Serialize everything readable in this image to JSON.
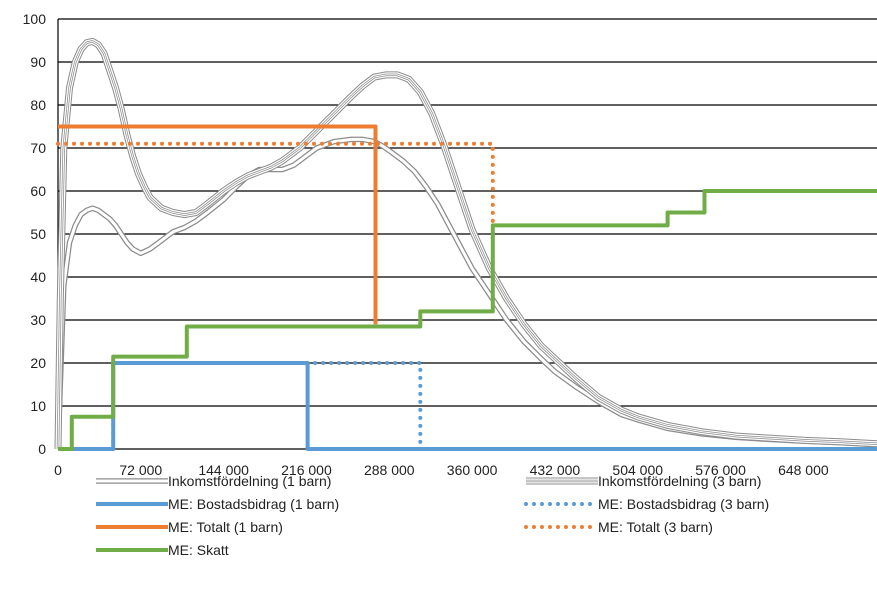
{
  "chart_data": {
    "type": "line",
    "xlim": [
      0,
      712000
    ],
    "ylim": [
      0,
      100
    ],
    "x_ticks": [
      0,
      72000,
      144000,
      216000,
      288000,
      360000,
      432000,
      504000,
      576000,
      648000
    ],
    "x_tick_labels": [
      "0",
      "72 000",
      "144 000",
      "216 000",
      "288 000",
      "360 000",
      "432 000",
      "504 000",
      "576 000",
      "648 000"
    ],
    "y_ticks": [
      0,
      10,
      20,
      30,
      40,
      50,
      60,
      70,
      80,
      90,
      100
    ],
    "y_tick_labels": [
      "0",
      "10",
      "20",
      "30",
      "40",
      "50",
      "60",
      "70",
      "80",
      "90",
      "100"
    ],
    "grid": "horizontal",
    "legend_position": "bottom",
    "series": [
      {
        "name": "Inkomstfördelning (1 barn)",
        "style": "double",
        "color": "#8c8c8c",
        "x": [
          0,
          2000,
          5000,
          10000,
          15000,
          20000,
          25000,
          30000,
          35000,
          40000,
          45000,
          50000,
          55000,
          60000,
          65000,
          72000,
          80000,
          90000,
          100000,
          110000,
          120000,
          130000,
          144000,
          155000,
          165000,
          175000,
          185000,
          195000,
          205000,
          215000,
          225000,
          240000,
          255000,
          265000,
          275000,
          282000,
          290000,
          300000,
          310000,
          320000,
          330000,
          340000,
          350000,
          360000,
          375000,
          390000,
          405000,
          420000,
          432000,
          450000,
          470000,
          490000,
          504000,
          530000,
          560000,
          590000,
          620000,
          650000,
          680000,
          712000
        ],
        "y": [
          0,
          15,
          38,
          48,
          52,
          54.5,
          55.5,
          56,
          55.5,
          54.5,
          53.5,
          52,
          50,
          48,
          46.5,
          45.5,
          46.5,
          48.5,
          50.5,
          51.5,
          53,
          55,
          58,
          61,
          63.5,
          65,
          65,
          65,
          66,
          68,
          70,
          71.5,
          72,
          72,
          71.5,
          70.5,
          69,
          67,
          64.5,
          61,
          57,
          52,
          47,
          42,
          36,
          30,
          25,
          21,
          18,
          14.5,
          11,
          8,
          6.8,
          4.8,
          3.5,
          2.7,
          2.2,
          1.8,
          1.5,
          1
        ]
      },
      {
        "name": "Inkomstfördelning (3 barn)",
        "style": "triple",
        "color": "#8c8c8c",
        "x": [
          0,
          2000,
          5000,
          10000,
          15000,
          20000,
          25000,
          30000,
          35000,
          40000,
          45000,
          50000,
          55000,
          60000,
          65000,
          70000,
          75000,
          80000,
          90000,
          100000,
          110000,
          120000,
          130000,
          144000,
          155000,
          165000,
          175000,
          185000,
          195000,
          210000,
          225000,
          240000,
          255000,
          265000,
          275000,
          285000,
          295000,
          305000,
          315000,
          325000,
          335000,
          345000,
          355000,
          360000,
          375000,
          390000,
          405000,
          420000,
          432000,
          450000,
          470000,
          490000,
          504000,
          530000,
          560000,
          590000,
          620000,
          650000,
          680000,
          712000
        ],
        "y": [
          0,
          35,
          70,
          84,
          90,
          93,
          94.5,
          94.8,
          94,
          92,
          88,
          84,
          79,
          73,
          68,
          64,
          61,
          58.5,
          56,
          55,
          54.5,
          55,
          57,
          60,
          62,
          63.5,
          64.5,
          65.5,
          67,
          70,
          74,
          78,
          82,
          84.5,
          86.5,
          87,
          87,
          86,
          83,
          78,
          71,
          63,
          55,
          51,
          42,
          35,
          29,
          24,
          21,
          16.5,
          12,
          9,
          7.5,
          5.5,
          4,
          3,
          2.5,
          2,
          1.7,
          1.2
        ]
      },
      {
        "name": "ME: Bostadsbidrag (1 barn)",
        "style": "solid",
        "color": "#5b9bd5",
        "x": [
          0,
          48000,
          48000,
          217000,
          217000,
          712000
        ],
        "y": [
          0,
          0,
          20,
          20,
          0,
          0
        ]
      },
      {
        "name": "ME: Bostadsbidrag (3 barn)",
        "style": "dotted",
        "color": "#5b9bd5",
        "x": [
          48000,
          48000,
          315000,
          315000,
          712000
        ],
        "y": [
          0,
          20,
          20,
          0,
          0
        ]
      },
      {
        "name": "ME: Totalt (1 barn)",
        "style": "solid",
        "color": "#ed7d31",
        "x": [
          0,
          276000,
          276000
        ],
        "y": [
          75,
          75,
          29
        ]
      },
      {
        "name": "ME: Totalt (3 barn)",
        "style": "dotted",
        "color": "#ed7d31",
        "x": [
          0,
          378000,
          378000
        ],
        "y": [
          71,
          71,
          52
        ]
      },
      {
        "name": "ME: Skatt",
        "style": "solid",
        "color": "#70ad47",
        "x": [
          0,
          12000,
          12000,
          48000,
          48000,
          112000,
          112000,
          315000,
          315000,
          378000,
          378000,
          530000,
          530000,
          562000,
          562000,
          712000
        ],
        "y": [
          0,
          0,
          7.5,
          7.5,
          21.5,
          21.5,
          28.5,
          28.5,
          32,
          32,
          52,
          52,
          55,
          55,
          60,
          60
        ]
      }
    ]
  }
}
